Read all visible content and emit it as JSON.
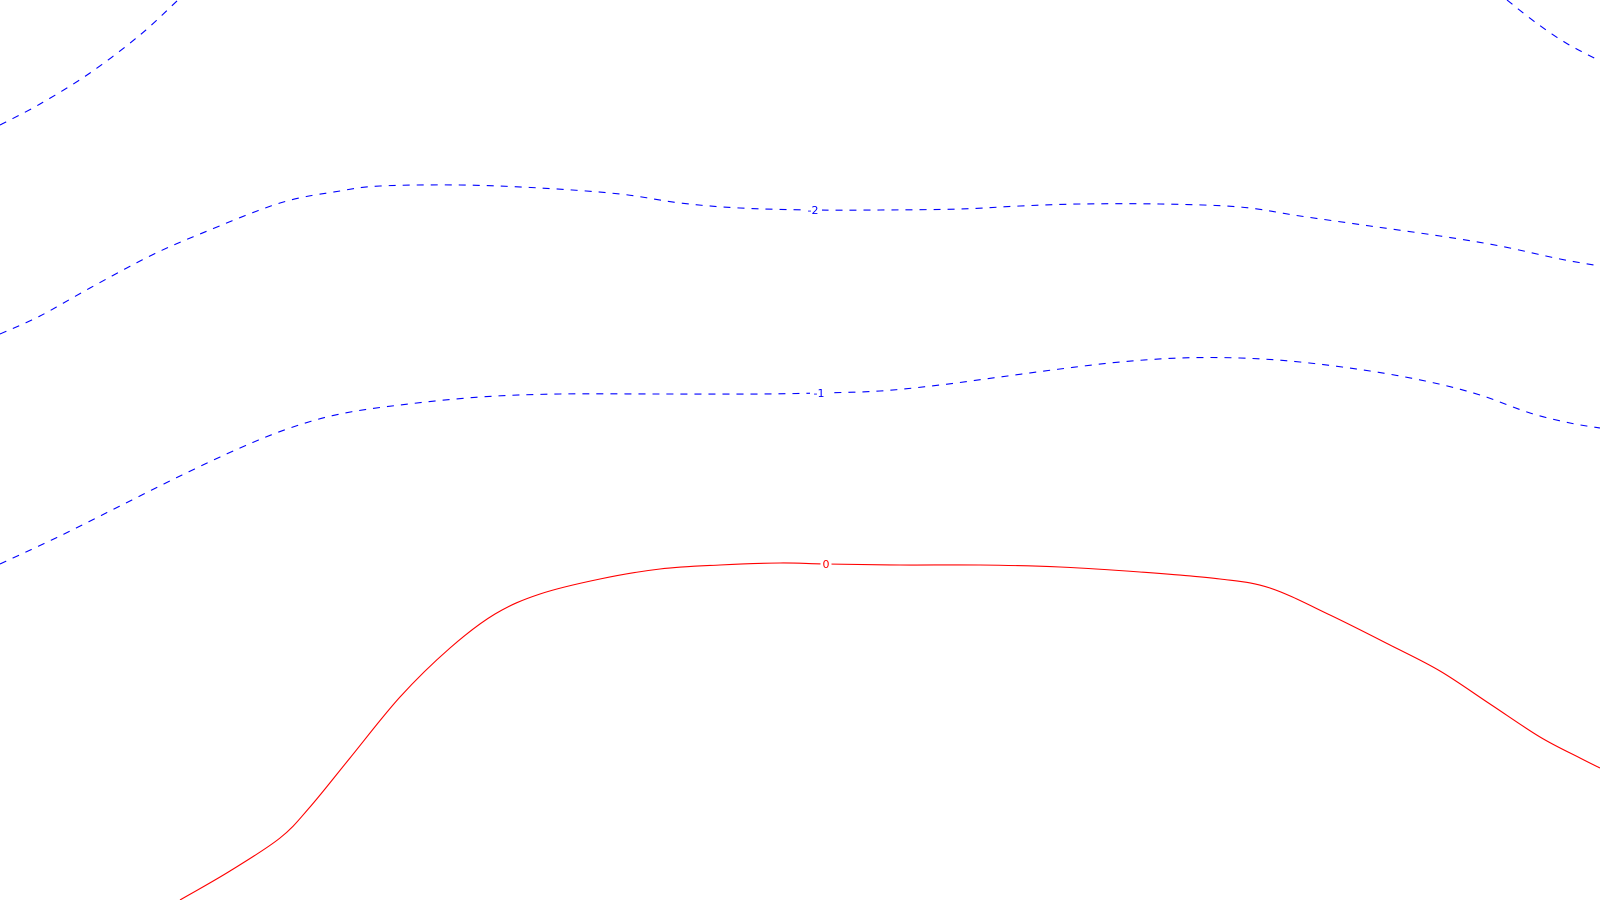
{
  "chart_data": {
    "type": "contour",
    "title": "",
    "xlabel": "",
    "ylabel": "",
    "grid": false,
    "series": [
      {
        "name": "contour-level-3",
        "level_label": "",
        "level": -3,
        "style": "dashed",
        "color": "#0000ff",
        "segments": [
          [
            [
              0,
              125
            ],
            [
              40,
              104
            ],
            [
              90,
              73
            ],
            [
              140,
              35
            ],
            [
              178,
              0
            ]
          ],
          [
            [
              1507,
              0
            ],
            [
              1535,
              22
            ],
            [
              1566,
              43
            ],
            [
              1600,
              61
            ]
          ]
        ]
      },
      {
        "name": "contour-level-2",
        "level_label": "-2",
        "level": -2,
        "style": "dashed",
        "color": "#0000ff",
        "segments": [
          [
            [
              0,
              334
            ],
            [
              40,
              316
            ],
            [
              90,
              288
            ],
            [
              150,
              256
            ],
            [
              200,
              234
            ],
            [
              280,
              203
            ],
            [
              340,
              191
            ],
            [
              380,
              186
            ],
            [
              460,
              185
            ],
            [
              540,
              188
            ],
            [
              620,
              194
            ],
            [
              680,
              203
            ],
            [
              740,
              208
            ],
            [
              813,
              210
            ],
            [
              880,
              210
            ],
            [
              960,
              209
            ],
            [
              1020,
              206
            ],
            [
              1080,
              204
            ],
            [
              1160,
              204
            ],
            [
              1240,
              207
            ],
            [
              1300,
              216
            ],
            [
              1370,
              226
            ],
            [
              1440,
              236
            ],
            [
              1500,
              246
            ],
            [
              1560,
              259
            ],
            [
              1600,
              266
            ]
          ]
        ],
        "label_at": [
          813,
          210
        ]
      },
      {
        "name": "contour-level-1",
        "level_label": "-1",
        "level": -1,
        "style": "dashed",
        "color": "#0000ff",
        "segments": [
          [
            [
              0,
              564
            ],
            [
              60,
              536
            ],
            [
              120,
              506
            ],
            [
              180,
              476
            ],
            [
              240,
              448
            ],
            [
              290,
              428
            ],
            [
              340,
              414
            ],
            [
              400,
              405
            ],
            [
              480,
              397
            ],
            [
              560,
              394
            ],
            [
              660,
              394
            ],
            [
              760,
              394
            ],
            [
              819,
              393
            ],
            [
              880,
              391
            ],
            [
              940,
              385
            ],
            [
              1000,
              377
            ],
            [
              1060,
              369
            ],
            [
              1120,
              362
            ],
            [
              1180,
              358
            ],
            [
              1240,
              358
            ],
            [
              1300,
              362
            ],
            [
              1370,
              371
            ],
            [
              1430,
              382
            ],
            [
              1480,
              395
            ],
            [
              1530,
              413
            ],
            [
              1570,
              423
            ],
            [
              1600,
              428
            ]
          ]
        ],
        "label_at": [
          819,
          393
        ]
      },
      {
        "name": "contour-level-0",
        "level_label": "0",
        "level": 0,
        "style": "solid",
        "color": "#ff0000",
        "segments": [
          [
            [
              180,
              900
            ],
            [
              230,
              871
            ],
            [
              280,
              838
            ],
            [
              310,
              807
            ],
            [
              350,
              758
            ],
            [
              400,
              697
            ],
            [
              450,
              648
            ],
            [
              495,
              614
            ],
            [
              540,
              594
            ],
            [
              600,
              579
            ],
            [
              660,
              569
            ],
            [
              720,
              565
            ],
            [
              780,
              563
            ],
            [
              826,
              564
            ],
            [
              900,
              565
            ],
            [
              980,
              565
            ],
            [
              1060,
              567
            ],
            [
              1140,
              572
            ],
            [
              1220,
              579
            ],
            [
              1270,
              588
            ],
            [
              1330,
              615
            ],
            [
              1390,
              645
            ],
            [
              1440,
              671
            ],
            [
              1490,
              704
            ],
            [
              1540,
              737
            ],
            [
              1580,
              758
            ],
            [
              1600,
              768
            ]
          ]
        ],
        "label_at": [
          826,
          564
        ]
      }
    ]
  }
}
